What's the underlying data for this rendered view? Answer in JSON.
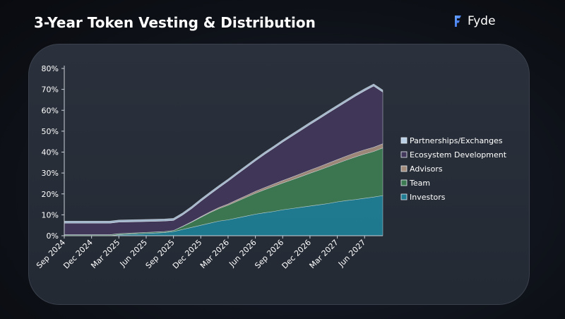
{
  "header": {
    "title": "3-Year Token Vesting & Distribution",
    "brand": "Fyde",
    "brand_icon": "fyde-logo-icon"
  },
  "colors": {
    "Investors": "#1f7d93",
    "Team": "#3c7a52",
    "Advisors": "#a28b7a",
    "Ecosystem Development": "#41375a",
    "Partnerships/Exchanges": "#b9cfe5"
  },
  "chart_data": {
    "type": "area",
    "stacked": true,
    "x": [
      "2024-09",
      "2024-10",
      "2024-11",
      "2024-12",
      "2025-01",
      "2025-02",
      "2025-03",
      "2025-04",
      "2025-05",
      "2025-06",
      "2025-07",
      "2025-08",
      "2025-09",
      "2025-10",
      "2025-11",
      "2025-12",
      "2026-01",
      "2026-02",
      "2026-03",
      "2026-04",
      "2026-05",
      "2026-06",
      "2026-07",
      "2026-08",
      "2026-09",
      "2026-10",
      "2026-11",
      "2026-12",
      "2027-01",
      "2027-02",
      "2027-03",
      "2027-04",
      "2027-05",
      "2027-06",
      "2027-07",
      "2027-08"
    ],
    "x_tick_labels": [
      "Sep 2024",
      "Dec 2024",
      "Mar 2025",
      "Jun 2025",
      "Sep 2025",
      "Dec 2025",
      "Mar 2026",
      "Jun 2026",
      "Sep 2026",
      "Dec 2026",
      "Mar 2027",
      "Jun 2027"
    ],
    "series": [
      {
        "name": "Investors",
        "values": [
          0,
          0,
          0,
          0,
          0,
          0,
          0.5,
          0.7,
          0.9,
          1.1,
          1.3,
          1.5,
          2.0,
          3.0,
          4.0,
          5.0,
          6.0,
          7.0,
          7.6,
          8.5,
          9.4,
          10.3,
          11.0,
          11.6,
          12.4,
          13.0,
          13.6,
          14.2,
          14.8,
          15.4,
          16.2,
          16.8,
          17.3,
          17.9,
          18.5,
          19.2
        ]
      },
      {
        "name": "Team",
        "values": [
          0.5,
          0.5,
          0.5,
          0.5,
          0.5,
          0.5,
          0.5,
          0.5,
          0.5,
          0.5,
          0.5,
          0.5,
          0.5,
          1.4,
          2.5,
          3.8,
          5.0,
          6.0,
          7.0,
          8.0,
          9.0,
          10.0,
          11.0,
          12.0,
          12.8,
          13.7,
          14.7,
          15.7,
          16.6,
          17.6,
          18.4,
          19.4,
          20.4,
          21.2,
          21.8,
          22.8
        ]
      },
      {
        "name": "Advisors",
        "values": [
          0,
          0,
          0,
          0,
          0,
          0,
          0,
          0,
          0,
          0,
          0,
          0,
          0,
          0.1,
          0.2,
          0.3,
          0.4,
          0.5,
          0.6,
          0.7,
          0.8,
          0.9,
          1.0,
          1.1,
          1.2,
          1.3,
          1.4,
          1.5,
          1.6,
          1.7,
          1.8,
          1.9,
          2.0,
          2.0,
          2.0,
          2.0
        ]
      },
      {
        "name": "Ecosystem Development",
        "values": [
          5.5,
          5.5,
          5.5,
          5.5,
          5.5,
          5.5,
          5.5,
          5.4,
          5.3,
          5.2,
          5.1,
          5.0,
          4.8,
          5.4,
          6.3,
          7.4,
          8.4,
          9.5,
          10.9,
          12.2,
          13.4,
          14.6,
          15.9,
          17.1,
          18.4,
          19.6,
          20.7,
          21.8,
          22.9,
          24.0,
          25.0,
          26.0,
          27.1,
          28.2,
          29.3,
          24.7
        ]
      },
      {
        "name": "Partnerships/Exchanges",
        "values": [
          1.0,
          1.0,
          1.0,
          1.0,
          1.0,
          1.0,
          1.0,
          1.0,
          1.0,
          1.0,
          1.0,
          1.0,
          1.0,
          1.0,
          1.0,
          1.0,
          1.0,
          1.0,
          1.0,
          1.0,
          1.0,
          1.0,
          1.0,
          1.0,
          1.0,
          1.0,
          1.0,
          1.0,
          1.0,
          1.0,
          1.0,
          1.0,
          1.0,
          1.0,
          1.0,
          1.0
        ]
      }
    ],
    "y_tick_labels": [
      "0%",
      "10%",
      "20%",
      "30%",
      "40%",
      "50%",
      "60%",
      "70%",
      "80%"
    ],
    "ylim": [
      0,
      80
    ],
    "legend": {
      "placement": "right",
      "order": [
        "Partnerships/Exchanges",
        "Ecosystem Development",
        "Advisors",
        "Team",
        "Investors"
      ]
    },
    "grid": false
  }
}
